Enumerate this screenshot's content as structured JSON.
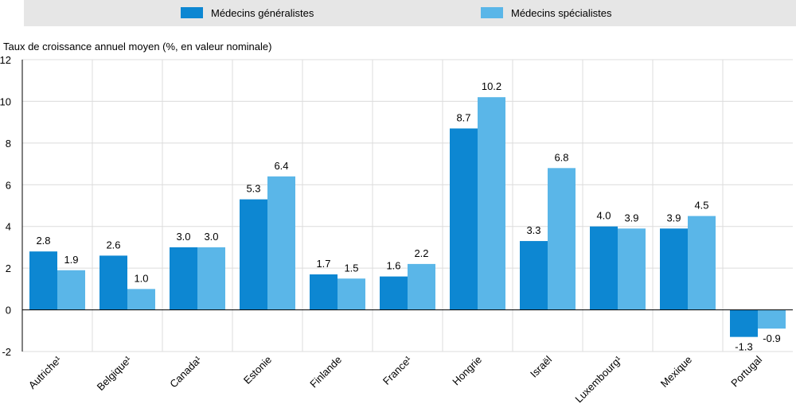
{
  "chart_data": {
    "type": "bar",
    "ylabel": "Taux de croissance annuel moyen (%, en valeur nominale)",
    "ylim": [
      -2,
      12
    ],
    "yticks": [
      -2,
      0,
      2,
      4,
      6,
      8,
      10,
      12
    ],
    "categories": [
      "Autriche¹",
      "Belgique¹",
      "Canada¹",
      "Estonie",
      "Finlande",
      "France¹",
      "Hongrie",
      "Israël",
      "Luxembourg¹",
      "Mexique",
      "Portugal"
    ],
    "series": [
      {
        "name": "Médecins généralistes",
        "color": "#0d87d2",
        "values": [
          2.8,
          2.6,
          3.0,
          5.3,
          1.7,
          1.6,
          8.7,
          3.3,
          4.0,
          3.9,
          -1.3
        ],
        "labels": [
          "2.8",
          "2.6",
          "3.0",
          "5.3",
          "1.7",
          "1.6",
          "8.7",
          "3.3",
          "4.0",
          "3.9",
          "-1.3"
        ]
      },
      {
        "name": "Médecins spécialistes",
        "color": "#5ab6e8",
        "values": [
          1.9,
          1.0,
          3.0,
          6.4,
          1.5,
          2.2,
          10.2,
          6.8,
          3.9,
          4.5,
          -0.9
        ],
        "labels": [
          "1.9",
          "1.0",
          "3.0",
          "6.4",
          "1.5",
          "2.2",
          "10.2",
          "6.8",
          "3.9",
          "4.5",
          "-0.9"
        ]
      }
    ]
  }
}
